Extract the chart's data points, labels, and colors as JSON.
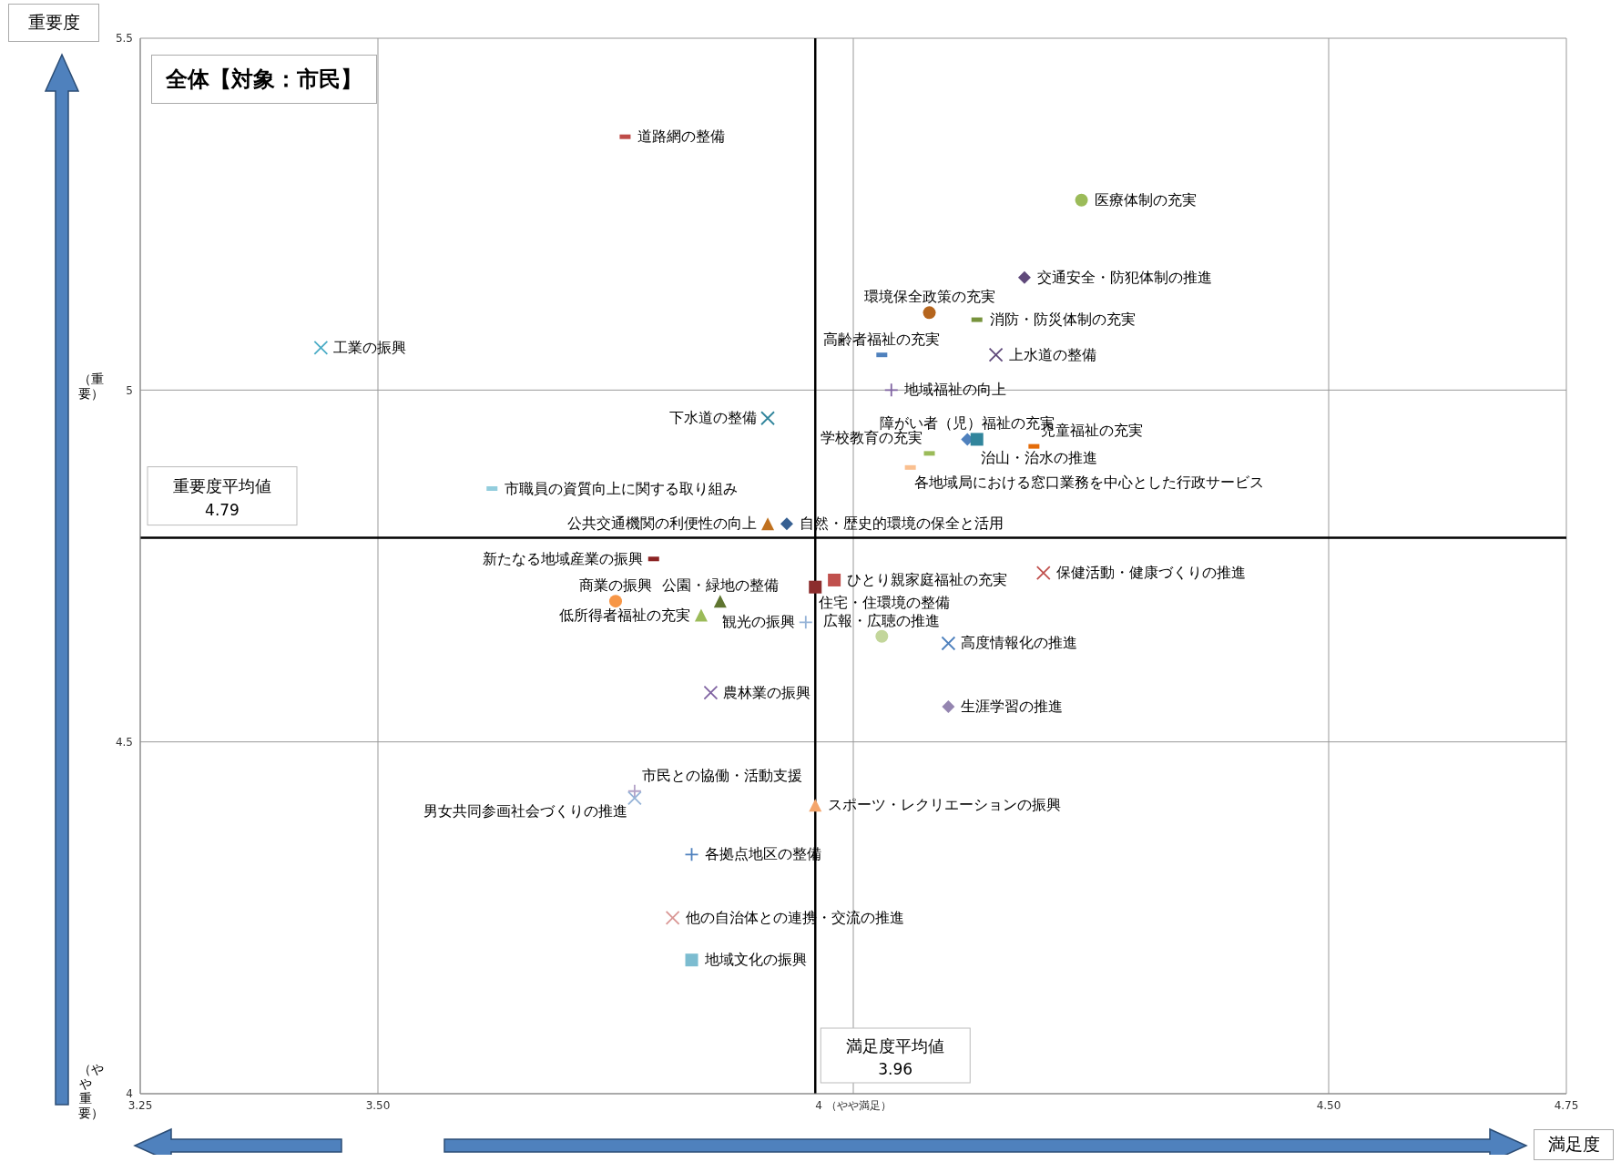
{
  "chart_data": {
    "type": "scatter",
    "title": "全体【対象：市民】",
    "xlabel": "満足度",
    "ylabel": "重要度",
    "xlim": [
      3.25,
      4.75
    ],
    "xticks": [
      3.25,
      {
        "value": 3.5,
        "label": "3.50"
      },
      {
        "value": 4,
        "label": "4 （やや満足）"
      },
      {
        "value": 4.5,
        "label": "4.50"
      },
      4.75
    ],
    "ylim": [
      4,
      5.5
    ],
    "yticks": [
      4,
      4.5,
      5,
      5.5
    ],
    "grid": true,
    "ref_lines": [
      {
        "axis": "x",
        "value": 3.96,
        "label": "満足度平均値\n3.96",
        "color": "#000000"
      },
      {
        "axis": "y",
        "value": 4.79,
        "label": "重要度平均値\n4.79",
        "color": "#000000"
      }
    ],
    "annotations": [
      "（重要）",
      "（やや重要）"
    ],
    "series": [
      {
        "name": "道路網の整備",
        "color": "#be4b48",
        "marker": "square",
        "x": [
          3.76
        ],
        "values": [
          5.36
        ]
      },
      {
        "name": "医療体制の充実",
        "color": "#9bbb59",
        "marker": "circle",
        "x": [
          4.24
        ],
        "values": [
          5.27
        ]
      },
      {
        "name": "交通安全・防犯体制の推進",
        "color": "#604a7b",
        "marker": "diamond",
        "x": [
          4.18
        ],
        "values": [
          5.16
        ]
      },
      {
        "name": "環境保全政策の充実",
        "color": "#b5651d",
        "marker": "circle",
        "x": [
          4.08
        ],
        "values": [
          5.11
        ]
      },
      {
        "name": "消防・防災体制の充実",
        "color": "#77933c",
        "marker": "square",
        "x": [
          4.13
        ],
        "values": [
          5.1
        ]
      },
      {
        "name": "工業の振興",
        "color": "#4bacc6",
        "marker": "cross",
        "x": [
          3.44
        ],
        "values": [
          5.06
        ]
      },
      {
        "name": "高齢者福祉の充実",
        "color": "#4f81bd",
        "marker": "square",
        "x": [
          4.03
        ],
        "values": [
          5.05
        ]
      },
      {
        "name": "上水道の整備",
        "color": "#604a7b",
        "marker": "cross",
        "x": [
          4.15
        ],
        "values": [
          5.05
        ]
      },
      {
        "name": "地域福祉の向上",
        "color": "#8064a2",
        "marker": "plus",
        "x": [
          4.04
        ],
        "values": [
          5.0
        ]
      },
      {
        "name": "下水道の整備",
        "color": "#31859c",
        "marker": "cross",
        "x": [
          3.91
        ],
        "values": [
          4.96
        ]
      },
      {
        "name": "障がい者（児）福祉の充実",
        "color": "#4f81bd",
        "marker": "diamond",
        "x": [
          4.12
        ],
        "values": [
          4.93
        ]
      },
      {
        "name": "児童福祉の充実",
        "color": "#e46c0a",
        "marker": "square",
        "x": [
          4.19
        ],
        "values": [
          4.92
        ]
      },
      {
        "name": "学校教育の充実",
        "color": "#9bbb59",
        "marker": "square",
        "x": [
          4.08
        ],
        "values": [
          4.91
        ]
      },
      {
        "name": "治山・治水の推進",
        "color": "#31859c",
        "marker": "square",
        "x": [
          4.13
        ],
        "values": [
          4.93
        ]
      },
      {
        "name": "各地域局における窓口業務を中心とした行政サービス",
        "color": "#fac090",
        "marker": "square",
        "x": [
          4.06
        ],
        "values": [
          4.89
        ]
      },
      {
        "name": "市職員の資質向上に関する取り組み",
        "color": "#93cddd",
        "marker": "square",
        "x": [
          3.62
        ],
        "values": [
          4.86
        ]
      },
      {
        "name": "自然・歴史的環境の保全と活用",
        "color": "#376092",
        "marker": "diamond",
        "x": [
          3.93
        ],
        "values": [
          4.81
        ]
      },
      {
        "name": "公共交通機関の利便性の向上",
        "color": "#c0711f",
        "marker": "triangle",
        "x": [
          3.91
        ],
        "values": [
          4.81
        ]
      },
      {
        "name": "新たなる地域産業の振興",
        "color": "#8b2323",
        "marker": "square",
        "x": [
          3.79
        ],
        "values": [
          4.76
        ]
      },
      {
        "name": "ひとり親家庭福祉の充実",
        "color": "#c0504d",
        "marker": "square",
        "x": [
          3.98
        ],
        "values": [
          4.73
        ]
      },
      {
        "name": "保健活動・健康づくりの推進",
        "color": "#c0504d",
        "marker": "cross",
        "x": [
          4.2
        ],
        "values": [
          4.74
        ]
      },
      {
        "name": "商業の振興",
        "color": "#f79646",
        "marker": "circle",
        "x": [
          3.75
        ],
        "values": [
          4.7
        ]
      },
      {
        "name": "公園・緑地の整備",
        "color": "#5f7530",
        "marker": "triangle",
        "x": [
          3.86
        ],
        "values": [
          4.7
        ]
      },
      {
        "name": "住宅・住環境の整備",
        "color": "#8c2d2d",
        "marker": "square",
        "x": [
          3.96
        ],
        "values": [
          4.72
        ]
      },
      {
        "name": "低所得者福祉の充実",
        "color": "#9bbb59",
        "marker": "triangle",
        "x": [
          3.84
        ],
        "values": [
          4.68
        ]
      },
      {
        "name": "観光の振興",
        "color": "#95b3d7",
        "marker": "plus",
        "x": [
          3.95
        ],
        "values": [
          4.67
        ]
      },
      {
        "name": "広報・広聴の推進",
        "color": "#c3d69b",
        "marker": "circle",
        "x": [
          4.03
        ],
        "values": [
          4.65
        ]
      },
      {
        "name": "高度情報化の推進",
        "color": "#4f81bd",
        "marker": "cross",
        "x": [
          4.1
        ],
        "values": [
          4.64
        ]
      },
      {
        "name": "農林業の振興",
        "color": "#8064a2",
        "marker": "cross",
        "x": [
          3.85
        ],
        "values": [
          4.57
        ]
      },
      {
        "name": "生涯学習の推進",
        "color": "#9485b0",
        "marker": "diamond",
        "x": [
          4.1
        ],
        "values": [
          4.55
        ]
      },
      {
        "name": "市民との協働・活動支援",
        "color": "#b3a2c7",
        "marker": "plus",
        "x": [
          3.77
        ],
        "values": [
          4.43
        ]
      },
      {
        "name": "男女共同参画社会づくりの推進",
        "color": "#95b3d7",
        "marker": "cross",
        "x": [
          3.77
        ],
        "values": [
          4.42
        ]
      },
      {
        "name": "スポーツ・レクリエーションの振興",
        "color": "#f4a56b",
        "marker": "triangle",
        "x": [
          3.96
        ],
        "values": [
          4.41
        ]
      },
      {
        "name": "各拠点地区の整備",
        "color": "#4f81bd",
        "marker": "plus",
        "x": [
          3.83
        ],
        "values": [
          4.34
        ]
      },
      {
        "name": "他の自治体との連携・交流の推進",
        "color": "#d99694",
        "marker": "cross",
        "x": [
          3.81
        ],
        "values": [
          4.25
        ]
      },
      {
        "name": "地域文化の振興",
        "color": "#7cbcd0",
        "marker": "square",
        "x": [
          3.83
        ],
        "values": [
          4.19
        ]
      }
    ]
  }
}
